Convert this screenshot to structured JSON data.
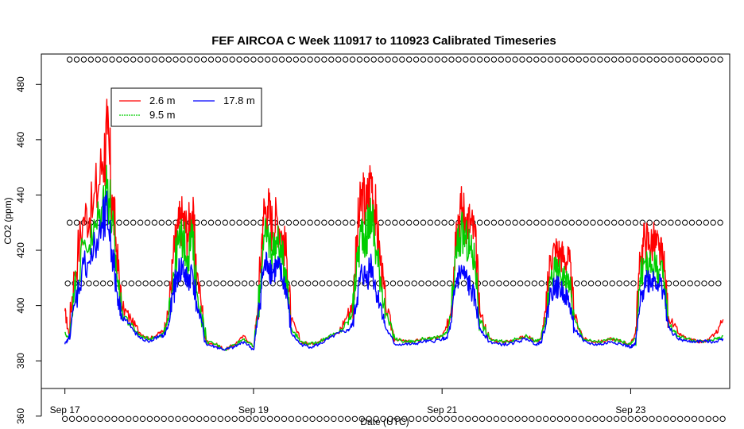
{
  "chart_data": {
    "type": "line",
    "title": "FEF AIRCOA C  Week 110917 to 110923  Calibrated Timeseries",
    "xlabel": "Date (UTC)",
    "ylabel": "CO2 (ppm)",
    "x_units": "days since Sep 17 00:00 UTC",
    "xlim": [
      -0.25,
      7.05
    ],
    "ylim": [
      370,
      491
    ],
    "x_ticks": [
      {
        "value": 0,
        "label": "Sep 17"
      },
      {
        "value": 2,
        "label": "Sep 19"
      },
      {
        "value": 4,
        "label": "Sep 21"
      },
      {
        "value": 6,
        "label": "Sep 23"
      }
    ],
    "y_ticks": [
      360,
      380,
      400,
      420,
      440,
      460,
      480
    ],
    "legend": {
      "position": "top-left",
      "entries": [
        {
          "label": "2.6 m",
          "color": "#ff0000"
        },
        {
          "label": "9.5 m",
          "color": "#00cd00"
        },
        {
          "label": "17.8 m",
          "color": "#0000ff"
        }
      ]
    },
    "calibration_markers": {
      "symbol": "o",
      "levels": [
        489,
        430,
        408,
        359
      ],
      "x_start": [
        0.05,
        0.05,
        0.03,
        0.0
      ],
      "x_end": [
        7.0,
        7.0,
        7.0,
        7.0
      ],
      "spacing_days": 0.075
    },
    "series": [
      {
        "name": "2.6 m",
        "color": "#ff0000",
        "x": [
          0.0,
          0.04,
          0.1,
          0.2,
          0.3,
          0.4,
          0.45,
          0.5,
          0.55,
          0.6,
          0.7,
          0.8,
          0.9,
          1.0,
          1.05,
          1.1,
          1.15,
          1.2,
          1.25,
          1.3,
          1.35,
          1.4,
          1.5,
          1.6,
          1.7,
          1.8,
          1.9,
          2.0,
          2.05,
          2.1,
          2.15,
          2.2,
          2.25,
          2.3,
          2.35,
          2.4,
          2.5,
          2.6,
          2.7,
          2.8,
          2.9,
          3.0,
          3.05,
          3.1,
          3.15,
          3.2,
          3.25,
          3.3,
          3.35,
          3.4,
          3.5,
          3.6,
          3.7,
          3.8,
          3.9,
          4.0,
          4.05,
          4.1,
          4.15,
          4.2,
          4.25,
          4.3,
          4.35,
          4.4,
          4.5,
          4.6,
          4.7,
          4.8,
          4.9,
          5.0,
          5.05,
          5.1,
          5.15,
          5.2,
          5.25,
          5.3,
          5.35,
          5.4,
          5.5,
          5.6,
          5.7,
          5.8,
          5.9,
          6.0,
          6.05,
          6.1,
          6.15,
          6.2,
          6.25,
          6.3,
          6.35,
          6.4,
          6.5,
          6.6,
          6.7,
          6.8,
          6.9,
          6.98
        ],
        "values": [
          398,
          390,
          412,
          432,
          435,
          452,
          462,
          440,
          420,
          400,
          395,
          390,
          388,
          390,
          391,
          398,
          418,
          428,
          432,
          426,
          434,
          412,
          387,
          386,
          384,
          386,
          389,
          385,
          400,
          432,
          436,
          428,
          432,
          426,
          418,
          395,
          387,
          386,
          387,
          389,
          390,
          397,
          400,
          425,
          440,
          435,
          448,
          430,
          416,
          400,
          388,
          387,
          387,
          388,
          388,
          389,
          392,
          400,
          430,
          435,
          432,
          430,
          425,
          398,
          388,
          387,
          387,
          388,
          389,
          387,
          388,
          398,
          418,
          420,
          419,
          417,
          416,
          397,
          388,
          387,
          387,
          388,
          387,
          386,
          390,
          416,
          425,
          422,
          423,
          420,
          416,
          396,
          390,
          388,
          387,
          387,
          390,
          395
        ]
      },
      {
        "name": "9.5 m",
        "color": "#00cd00",
        "x": [
          0.0,
          0.04,
          0.1,
          0.2,
          0.3,
          0.4,
          0.45,
          0.5,
          0.55,
          0.6,
          0.7,
          0.8,
          0.9,
          1.0,
          1.05,
          1.1,
          1.15,
          1.2,
          1.25,
          1.3,
          1.35,
          1.4,
          1.5,
          1.6,
          1.7,
          1.8,
          1.9,
          2.0,
          2.05,
          2.1,
          2.15,
          2.2,
          2.25,
          2.3,
          2.35,
          2.4,
          2.5,
          2.6,
          2.7,
          2.8,
          2.9,
          3.0,
          3.05,
          3.1,
          3.15,
          3.2,
          3.25,
          3.3,
          3.35,
          3.4,
          3.5,
          3.6,
          3.7,
          3.8,
          3.9,
          4.0,
          4.05,
          4.1,
          4.15,
          4.2,
          4.25,
          4.3,
          4.35,
          4.4,
          4.5,
          4.6,
          4.7,
          4.8,
          4.9,
          5.0,
          5.05,
          5.1,
          5.15,
          5.2,
          5.25,
          5.3,
          5.35,
          5.4,
          5.5,
          5.6,
          5.7,
          5.8,
          5.9,
          6.0,
          6.05,
          6.1,
          6.15,
          6.2,
          6.25,
          6.3,
          6.35,
          6.4,
          6.5,
          6.6,
          6.7,
          6.8,
          6.9,
          6.98
        ],
        "values": [
          390,
          388,
          405,
          422,
          424,
          436,
          445,
          430,
          412,
          398,
          393,
          389,
          388,
          389,
          390,
          395,
          412,
          422,
          425,
          418,
          425,
          405,
          387,
          386,
          384,
          386,
          388,
          385,
          398,
          422,
          425,
          420,
          423,
          418,
          412,
          392,
          387,
          386,
          387,
          389,
          390,
          394,
          398,
          416,
          428,
          425,
          434,
          420,
          410,
          397,
          388,
          387,
          387,
          388,
          388,
          389,
          390,
          397,
          420,
          426,
          424,
          420,
          416,
          395,
          388,
          387,
          387,
          388,
          389,
          387,
          388,
          395,
          410,
          413,
          412,
          410,
          409,
          395,
          388,
          387,
          387,
          388,
          387,
          386,
          388,
          410,
          416,
          414,
          415,
          413,
          410,
          394,
          389,
          388,
          387,
          387,
          388,
          389
        ]
      },
      {
        "name": "17.8 m",
        "color": "#0000ff",
        "x": [
          0.0,
          0.04,
          0.1,
          0.2,
          0.3,
          0.4,
          0.45,
          0.5,
          0.55,
          0.6,
          0.7,
          0.8,
          0.9,
          1.0,
          1.05,
          1.1,
          1.15,
          1.2,
          1.25,
          1.3,
          1.35,
          1.4,
          1.5,
          1.6,
          1.7,
          1.8,
          1.9,
          2.0,
          2.05,
          2.1,
          2.15,
          2.2,
          2.25,
          2.3,
          2.35,
          2.4,
          2.5,
          2.6,
          2.7,
          2.8,
          2.9,
          3.0,
          3.05,
          3.1,
          3.15,
          3.2,
          3.25,
          3.3,
          3.35,
          3.4,
          3.5,
          3.6,
          3.7,
          3.8,
          3.9,
          4.0,
          4.05,
          4.1,
          4.15,
          4.2,
          4.25,
          4.3,
          4.35,
          4.4,
          4.5,
          4.6,
          4.7,
          4.8,
          4.9,
          5.0,
          5.05,
          5.1,
          5.15,
          5.2,
          5.25,
          5.3,
          5.35,
          5.4,
          5.5,
          5.6,
          5.7,
          5.8,
          5.9,
          6.0,
          6.05,
          6.1,
          6.15,
          6.2,
          6.25,
          6.3,
          6.35,
          6.4,
          6.5,
          6.6,
          6.7,
          6.8,
          6.9,
          6.98
        ],
        "values": [
          386,
          388,
          400,
          415,
          418,
          428,
          433,
          420,
          405,
          397,
          392,
          388,
          387,
          389,
          389,
          393,
          405,
          412,
          414,
          408,
          413,
          400,
          386,
          385,
          384,
          385,
          387,
          384,
          396,
          412,
          416,
          412,
          414,
          410,
          406,
          390,
          386,
          385,
          386,
          388,
          390,
          391,
          393,
          403,
          412,
          410,
          416,
          405,
          400,
          392,
          386,
          386,
          386,
          387,
          387,
          388,
          388,
          394,
          409,
          412,
          410,
          406,
          402,
          392,
          387,
          386,
          386,
          387,
          388,
          386,
          387,
          393,
          405,
          407,
          406,
          404,
          401,
          392,
          387,
          386,
          386,
          387,
          386,
          385,
          386,
          400,
          410,
          409,
          410,
          408,
          406,
          392,
          388,
          387,
          387,
          387,
          387,
          388
        ]
      }
    ]
  }
}
